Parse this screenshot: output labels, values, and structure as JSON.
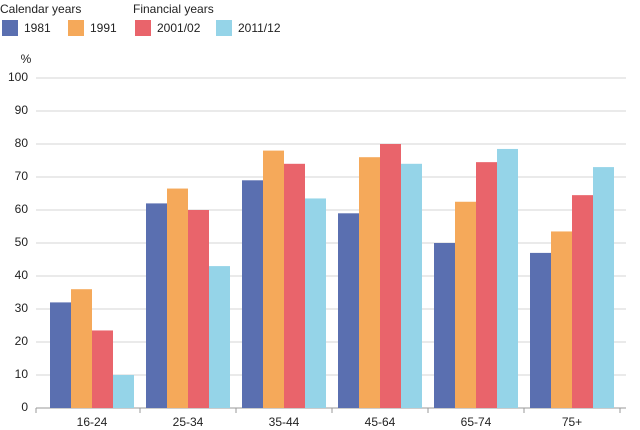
{
  "chart_data": {
    "type": "bar",
    "legend_titles": [
      "Calendar years",
      "Financial years"
    ],
    "y_label": "%",
    "categories": [
      "16-24",
      "25-34",
      "35-44",
      "45-64",
      "65-74",
      "75+"
    ],
    "series": [
      {
        "name": "1981",
        "color": "#5a6fb0",
        "values": [
          32,
          62,
          69,
          59,
          50,
          47
        ]
      },
      {
        "name": "1991",
        "color": "#f5a95a",
        "values": [
          36,
          66.5,
          78,
          76,
          62.5,
          53.5
        ]
      },
      {
        "name": "2001/02",
        "color": "#e9646b",
        "values": [
          23.5,
          60,
          74,
          80,
          74.5,
          64.5
        ]
      },
      {
        "name": "2011/12",
        "color": "#95d4e8",
        "values": [
          10,
          43,
          63.5,
          74,
          78.5,
          73
        ]
      }
    ],
    "ylim": [
      0,
      100
    ],
    "yticks": [
      0,
      10,
      20,
      30,
      40,
      50,
      60,
      70,
      80,
      90,
      100
    ],
    "grid": true
  }
}
